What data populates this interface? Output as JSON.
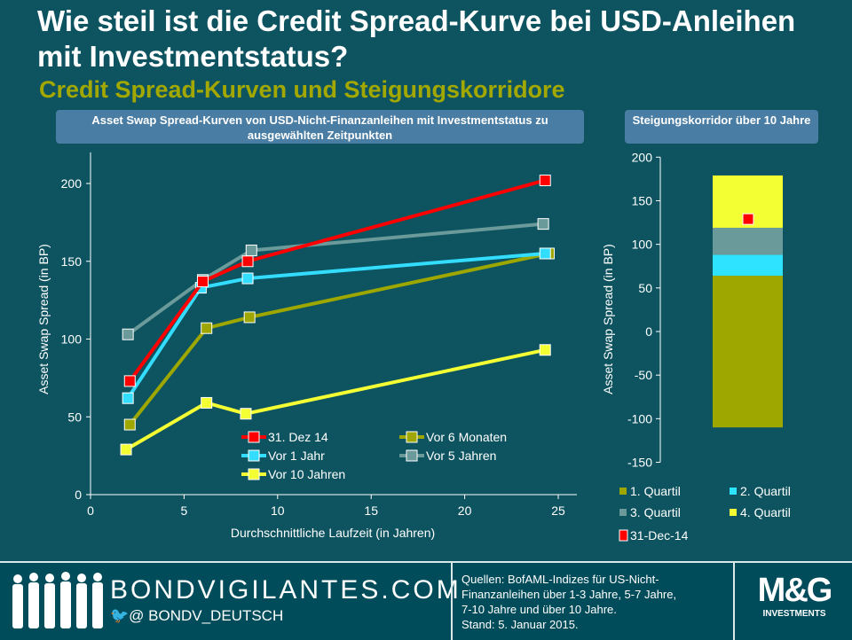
{
  "header": {
    "title": "Wie steil ist die Credit Spread-Kurve bei USD-Anleihen mit Investmentstatus?",
    "subtitle": "Credit Spread-Kurven und Steigungskorridore"
  },
  "chart_data": [
    {
      "type": "line",
      "title": "Asset Swap Spread-Kurven von USD-Nicht-Finanzanleihen mit Investmentstatus zu ausgewählten Zeitpunkten",
      "xlabel": "Durchschnittliche Laufzeit (in Jahren)",
      "ylabel": "Asset Swap Spread (in BP)",
      "xlim": [
        0,
        25
      ],
      "ylim": [
        0,
        220
      ],
      "xticks": [
        0,
        5,
        10,
        15,
        20,
        25
      ],
      "yticks": [
        0,
        50,
        100,
        150,
        200
      ],
      "legend_position": "bottom-center",
      "series": [
        {
          "name": "31. Dez 14",
          "color": "#ff0000",
          "x": [
            2.1,
            6.0,
            8.4,
            24.3
          ],
          "y": [
            73,
            137,
            150,
            202
          ]
        },
        {
          "name": "Vor 6 Monaten",
          "color": "#9ea700",
          "x": [
            2.1,
            6.2,
            8.5,
            24.5
          ],
          "y": [
            45,
            107,
            114,
            155
          ]
        },
        {
          "name": "Vor 1 Jahr",
          "color": "#33ddff",
          "x": [
            2.0,
            5.9,
            8.4,
            24.3
          ],
          "y": [
            62,
            133,
            139,
            155
          ]
        },
        {
          "name": "Vor 5 Jahren",
          "color": "#6a9a9a",
          "x": [
            2.0,
            6.0,
            8.6,
            24.2
          ],
          "y": [
            103,
            138,
            157,
            174
          ]
        },
        {
          "name": "Vor 10 Jahren",
          "color": "#f3ff33",
          "x": [
            1.9,
            6.2,
            8.3,
            24.3
          ],
          "y": [
            29,
            59,
            52,
            93
          ]
        }
      ]
    },
    {
      "type": "bar",
      "title": "Steigungskorridor über 10 Jahre",
      "ylabel": "Asset Swap Spread (in BP)",
      "ylim": [
        -150,
        200
      ],
      "yticks": [
        -150,
        -100,
        -50,
        0,
        50,
        100,
        150,
        200
      ],
      "legend_position": "bottom",
      "stack": [
        {
          "name": "1. Quartil",
          "color": "#9ea700",
          "from": -110,
          "to": 64
        },
        {
          "name": "2. Quartil",
          "color": "#2ee3ff",
          "from": 64,
          "to": 88
        },
        {
          "name": "3. Quartil",
          "color": "#6a9a9a",
          "from": 88,
          "to": 119
        },
        {
          "name": "4. Quartil",
          "color": "#f3ff33",
          "from": 119,
          "to": 179
        }
      ],
      "marker": {
        "name": "31-Dec-14",
        "color": "#ff0000",
        "value": 129
      }
    }
  ],
  "footer": {
    "site": "BONDVIGILANTES.COM",
    "twitter": "@ BONDV_DEUTSCH",
    "source_lines": [
      "Quellen: BofAML-Indizes für US-Nicht-",
      "Finanzanleihen über 1-3 Jahre, 5-7 Jahre,",
      "7-10 Jahre und über 10 Jahre.",
      "Stand: 5. Januar 2015."
    ],
    "logo_text": "M&G",
    "logo_sub": "INVESTMENTS"
  }
}
